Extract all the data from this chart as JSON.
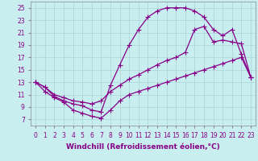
{
  "background_color": "#c8eef0",
  "grid_color": "#b0d8da",
  "line_color": "#880088",
  "marker": "+",
  "markersize": 4,
  "linewidth": 0.9,
  "xlabel": "Windchill (Refroidissement éolien,°C)",
  "xlabel_fontsize": 6.5,
  "xlim": [
    -0.5,
    23.5
  ],
  "ylim": [
    6,
    26
  ],
  "xticks": [
    0,
    1,
    2,
    3,
    4,
    5,
    6,
    7,
    8,
    9,
    10,
    11,
    12,
    13,
    14,
    15,
    16,
    17,
    18,
    19,
    20,
    21,
    22,
    23
  ],
  "yticks": [
    7,
    9,
    11,
    13,
    15,
    17,
    19,
    21,
    23,
    25
  ],
  "tick_fontsize": 5.5,
  "series": [
    [
      13.0,
      12.2,
      10.7,
      10.0,
      9.5,
      9.2,
      8.5,
      8.2,
      12.5,
      15.8,
      19.0,
      21.5,
      23.5,
      24.5,
      25.0,
      25.0,
      25.0,
      24.5,
      23.5,
      21.5,
      20.5,
      21.5,
      17.5,
      13.8
    ],
    [
      13.0,
      12.2,
      11.0,
      10.5,
      10.0,
      9.8,
      9.5,
      10.0,
      11.5,
      12.5,
      13.5,
      14.2,
      15.0,
      15.8,
      16.5,
      17.0,
      17.8,
      21.5,
      22.0,
      19.5,
      19.8,
      19.5,
      19.2,
      13.8
    ],
    [
      13.0,
      11.5,
      10.5,
      9.8,
      8.5,
      8.0,
      7.5,
      7.2,
      8.5,
      10.0,
      11.0,
      11.5,
      12.0,
      12.5,
      13.0,
      13.5,
      14.0,
      14.5,
      15.0,
      15.5,
      16.0,
      16.5,
      17.0,
      13.8
    ]
  ]
}
